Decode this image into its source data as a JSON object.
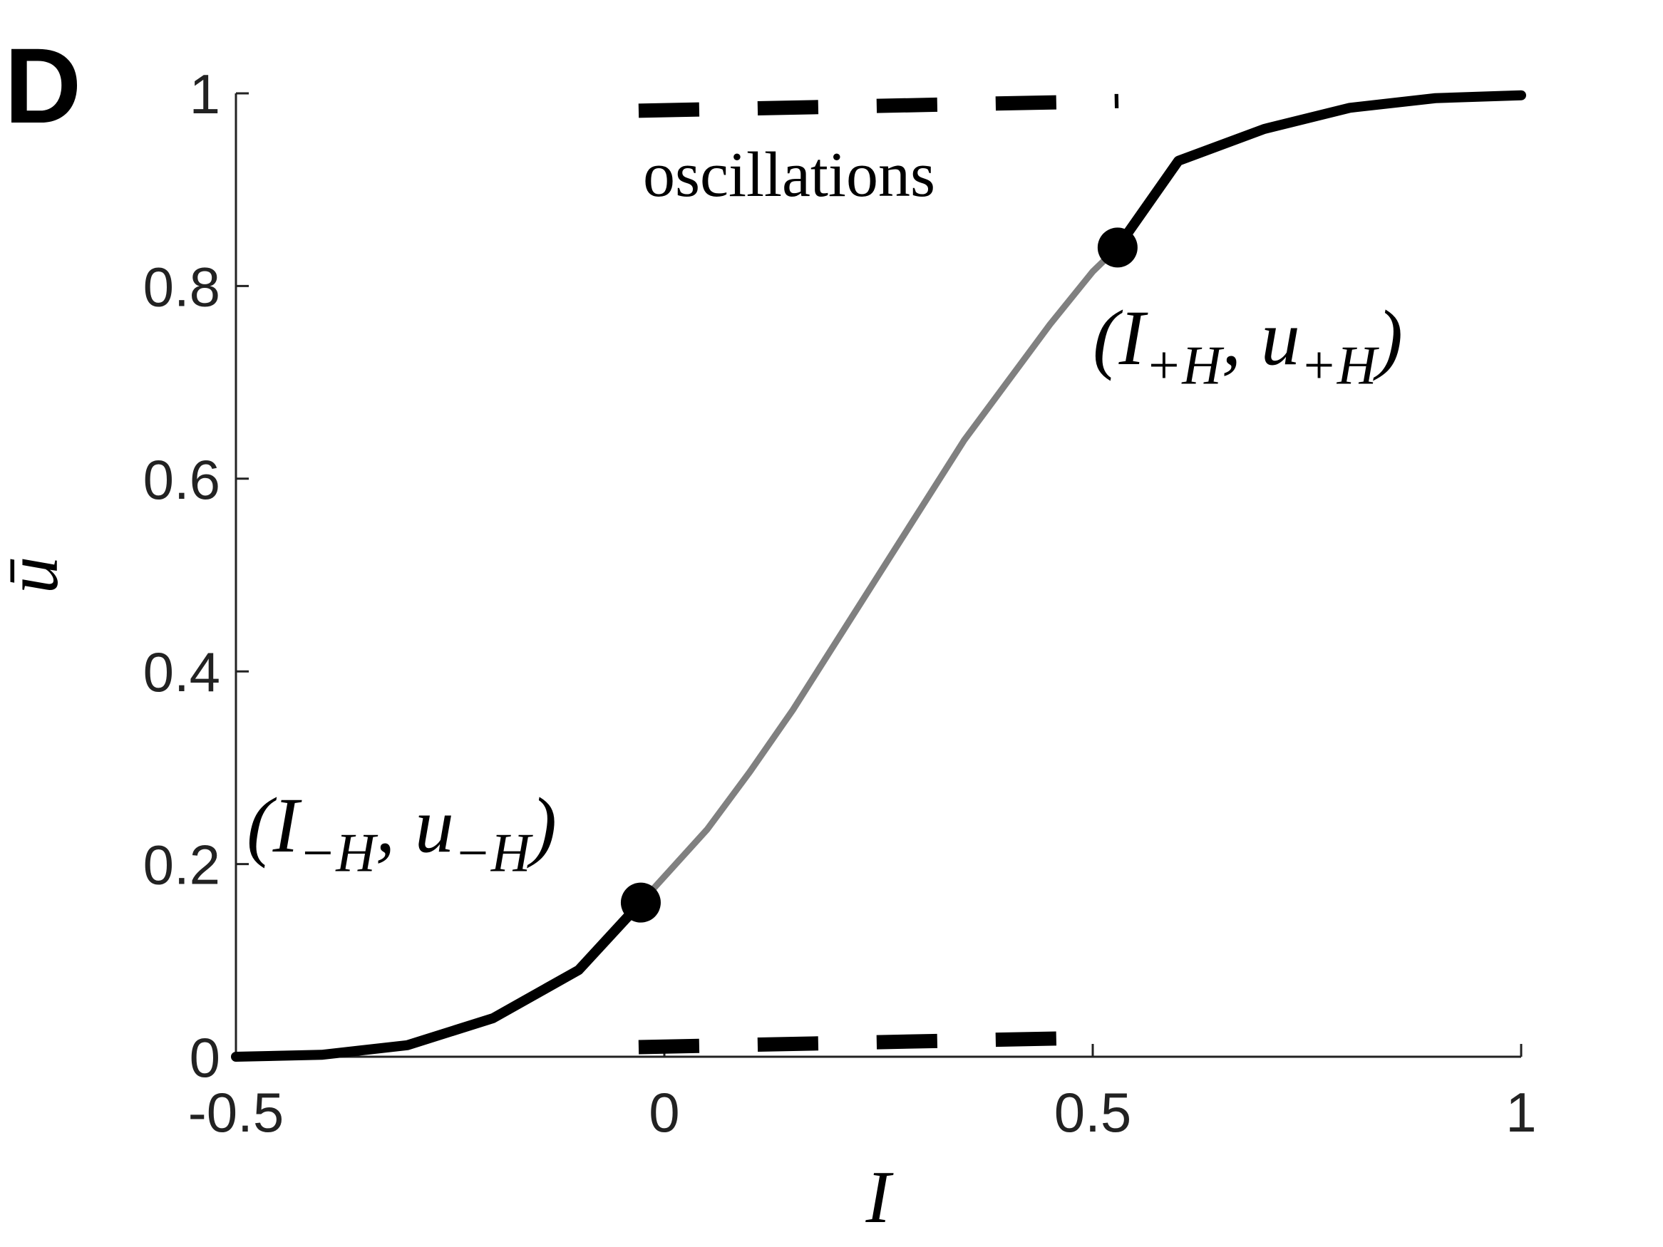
{
  "chart_data": {
    "type": "line",
    "panel_label": "D",
    "xlabel": "I",
    "ylabel": "ū",
    "xlim": [
      -0.5,
      1
    ],
    "ylim": [
      0,
      1
    ],
    "xticks": [
      -0.5,
      0,
      0.5,
      1
    ],
    "yticks": [
      0,
      0.2,
      0.4,
      0.6,
      0.8,
      1
    ],
    "series": [
      {
        "style": "solid",
        "color": "#000000",
        "x": [
          -0.5,
          -0.4,
          -0.3,
          -0.2,
          -0.1,
          -0.0275
        ],
        "values": [
          0,
          0.002,
          0.012,
          0.04,
          0.09,
          0.16
        ]
      },
      {
        "style": "solid",
        "color": "#808080",
        "x": [
          -0.0275,
          0.05,
          0.1,
          0.15,
          0.2,
          0.25,
          0.3,
          0.35,
          0.4,
          0.45,
          0.5,
          0.529
        ],
        "values": [
          0.16,
          0.236,
          0.296,
          0.36,
          0.43,
          0.5,
          0.57,
          0.64,
          0.7,
          0.76,
          0.815,
          0.84
        ]
      },
      {
        "style": "solid",
        "color": "#000000",
        "x": [
          0.529,
          0.6,
          0.7,
          0.8,
          0.9,
          1.0
        ],
        "values": [
          0.84,
          0.93,
          0.963,
          0.985,
          0.995,
          0.998
        ]
      },
      {
        "style": "dashed",
        "color": "#000000",
        "x": [
          -0.03,
          0.53
        ],
        "values": [
          0.982,
          0.992
        ]
      },
      {
        "style": "dashed",
        "color": "#000000",
        "x": [
          -0.03,
          0.4625
        ],
        "values": [
          0.01,
          0.019
        ]
      },
      {
        "style": "markers",
        "color": "#000000",
        "x": [
          -0.0275,
          0.529
        ],
        "values": [
          0.16,
          0.84
        ]
      }
    ],
    "annotations": [
      {
        "parts": [
          "oscillations"
        ]
      },
      {
        "parts": [
          "(I",
          "−H",
          ", u",
          "−H",
          ")"
        ]
      },
      {
        "parts": [
          "(I",
          "+H",
          ", u",
          "+H",
          ")"
        ]
      }
    ]
  }
}
